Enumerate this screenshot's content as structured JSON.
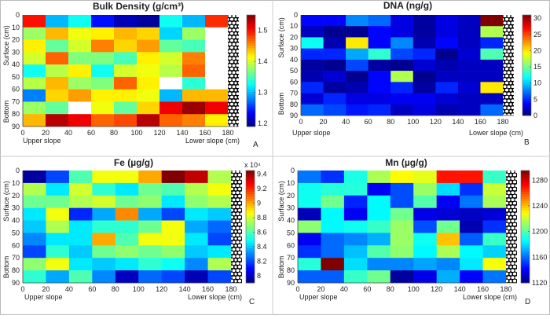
{
  "colormap": "jet",
  "chart_data": [
    {
      "panel": "A",
      "type": "heatmap",
      "title": "Bulk Density (g/cm³)",
      "x_ticks": [
        0,
        20,
        40,
        60,
        80,
        100,
        120,
        140,
        160,
        180
      ],
      "y_ticks": [
        0,
        10,
        20,
        30,
        40,
        50,
        60,
        70,
        80,
        90
      ],
      "ylabel_top": "Surface (cm)",
      "ylabel_bottom": "Bottom",
      "xlabel_left": "Upper slope",
      "xlabel_right": "Lower slope (cm)",
      "clim": [
        1.19,
        1.55
      ],
      "colorbar_ticks": [
        1.2,
        1.3,
        1.4,
        1.5
      ],
      "colorbar_multiplier": "",
      "values": [
        [
          1.5,
          1.3,
          1.33,
          1.24,
          1.21,
          1.2,
          1.33,
          1.3,
          1.49
        ],
        [
          1.38,
          1.44,
          1.41,
          1.42,
          1.44,
          1.43,
          1.31,
          1.38,
          null
        ],
        [
          1.42,
          1.36,
          1.4,
          1.46,
          1.43,
          1.45,
          1.36,
          1.35,
          null
        ],
        [
          1.4,
          1.47,
          1.37,
          1.37,
          1.35,
          1.42,
          1.4,
          1.46,
          null
        ],
        [
          1.33,
          1.39,
          1.42,
          1.33,
          1.4,
          1.41,
          1.39,
          1.47,
          null
        ],
        [
          1.39,
          1.44,
          1.38,
          1.37,
          1.47,
          1.42,
          null,
          1.34,
          null
        ],
        [
          1.28,
          1.43,
          1.45,
          1.42,
          1.42,
          1.41,
          1.3,
          1.44,
          1.44
        ],
        [
          1.38,
          1.36,
          null,
          1.41,
          1.36,
          1.43,
          1.51,
          1.54,
          1.51
        ],
        [
          1.44,
          1.53,
          1.51,
          1.47,
          1.48,
          1.53,
          1.47,
          1.46,
          1.42
        ]
      ]
    },
    {
      "panel": "B",
      "type": "heatmap",
      "title": "DNA (ng/g)",
      "x_ticks": [
        0,
        20,
        40,
        60,
        80,
        100,
        120,
        140,
        160,
        180
      ],
      "y_ticks": [
        0,
        10,
        20,
        30,
        40,
        50,
        60,
        70,
        80,
        90
      ],
      "ylabel_top": "Surface (cm)",
      "ylabel_bottom": "Bottom",
      "xlabel_left": "Upper slope",
      "xlabel_right": "Lower slope (cm)",
      "clim": [
        0,
        31
      ],
      "colorbar_ticks": [
        0,
        5,
        10,
        15,
        20,
        25,
        30
      ],
      "colorbar_multiplier": "",
      "values": [
        [
          4,
          4,
          8,
          7,
          3,
          1,
          3,
          2,
          31
        ],
        [
          2,
          0.5,
          0.5,
          4,
          3,
          1,
          3,
          2,
          17
        ],
        [
          12,
          1.5,
          20,
          4,
          8,
          1.5,
          4,
          2,
          5
        ],
        [
          5,
          5,
          9,
          13,
          6,
          5,
          0.5,
          2.5,
          14
        ],
        [
          1,
          0.5,
          6,
          1,
          0.5,
          2.5,
          1.5,
          2,
          2
        ],
        [
          1.5,
          2.5,
          0.5,
          4,
          17,
          0.5,
          2,
          2,
          2
        ],
        [
          5,
          1,
          1.5,
          4,
          5,
          1,
          5,
          2.5,
          20
        ],
        [
          2.5,
          5,
          3,
          3,
          3.5,
          3.5,
          2.5,
          2,
          2
        ],
        [
          7,
          6,
          4.5,
          5,
          2,
          3,
          1.5,
          2,
          7
        ]
      ]
    },
    {
      "panel": "C",
      "type": "heatmap",
      "title": "Fe (µg/g)",
      "x_ticks": [
        0,
        20,
        40,
        60,
        80,
        100,
        120,
        140,
        160,
        180
      ],
      "y_ticks": [
        0,
        10,
        20,
        30,
        40,
        50,
        60,
        70,
        80,
        90
      ],
      "ylabel_top": "Surface (cm)",
      "ylabel_bottom": "Bottom",
      "xlabel_left": "Upper slope",
      "xlabel_right": "Lower slope (cm)",
      "clim": [
        7.9,
        9.45
      ],
      "colorbar_ticks": [
        8,
        8.2,
        8.4,
        8.6,
        8.8,
        9,
        9.2,
        9.4
      ],
      "colorbar_multiplier": "x 10⁴",
      "values": [
        [
          7.95,
          8.2,
          8.6,
          8.85,
          8.85,
          9.0,
          9.45,
          9.35,
          8.75
        ],
        [
          8.75,
          8.45,
          8.8,
          8.55,
          8.45,
          8.65,
          8.6,
          8.75,
          8.85
        ],
        [
          8.65,
          8.65,
          8.75,
          8.8,
          8.65,
          8.7,
          8.45,
          8.7,
          8.75
        ],
        [
          8.45,
          8.85,
          8.15,
          8.35,
          9.05,
          8.35,
          8.2,
          8.45,
          8.4
        ],
        [
          8.4,
          8.75,
          8.45,
          8.55,
          8.55,
          8.65,
          8.85,
          8.35,
          8.25
        ],
        [
          8.3,
          8.45,
          8.45,
          9.0,
          8.6,
          8.85,
          8.85,
          8.45,
          8.2
        ],
        [
          8.2,
          8.55,
          8.4,
          8.65,
          8.7,
          8.65,
          8.7,
          8.4,
          8.45
        ],
        [
          8.7,
          8.85,
          8.45,
          8.4,
          8.45,
          8.55,
          8.5,
          8.3,
          8.75
        ],
        [
          8.55,
          8.35,
          8.6,
          8.3,
          8.0,
          8.25,
          8.2,
          7.98,
          8.2
        ]
      ]
    },
    {
      "panel": "D",
      "type": "heatmap",
      "title": "Mn (µg/g)",
      "x_ticks": [
        0,
        20,
        40,
        60,
        80,
        100,
        120,
        140,
        160,
        180
      ],
      "y_ticks": [
        0,
        10,
        20,
        30,
        40,
        50,
        60,
        70,
        80,
        90
      ],
      "ylabel_top": "Surface (cm)",
      "ylabel_bottom": "Bottom",
      "xlabel_left": "Upper slope",
      "xlabel_right": "Lower slope (cm)",
      "clim": [
        1120,
        1295
      ],
      "colorbar_ticks": [
        1120,
        1160,
        1200,
        1240,
        1280
      ],
      "colorbar_multiplier": "",
      "values": [
        [
          1162,
          1150,
          1190,
          1215,
          1230,
          1225,
          1270,
          1270,
          1195
        ],
        [
          1188,
          1192,
          1192,
          1140,
          1155,
          1212,
          1180,
          1150,
          1220
        ],
        [
          1188,
          1205,
          1148,
          1185,
          1155,
          1200,
          1140,
          1162,
          1215
        ],
        [
          1130,
          1185,
          1140,
          1185,
          1205,
          1138,
          1135,
          1132,
          1135
        ],
        [
          1210,
          1185,
          1188,
          1195,
          1212,
          1155,
          1205,
          1128,
          1150
        ],
        [
          1140,
          1160,
          1165,
          1172,
          1212,
          1188,
          1240,
          1158,
          1195
        ],
        [
          1150,
          1160,
          1175,
          1200,
          1210,
          1185,
          1215,
          1185,
          1178
        ],
        [
          1192,
          1295,
          1180,
          1165,
          1165,
          1170,
          1165,
          1182,
          1228
        ],
        [
          1158,
          1158,
          1195,
          1205,
          1125,
          1138,
          1172,
          1142,
          1162
        ]
      ]
    }
  ]
}
